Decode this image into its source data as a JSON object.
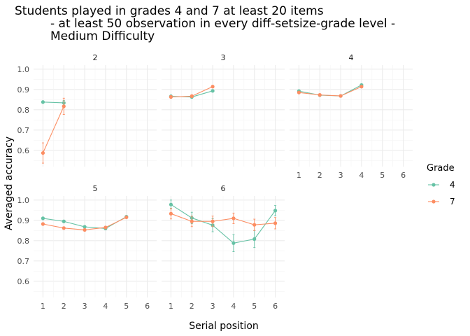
{
  "chart_data": {
    "type": "line",
    "title_lines": [
      "Students played in grades 4 and 7 at least 20 items",
      "- at least 50 observation in every diff-setsize-grade level -",
      "Medium Difficulty"
    ],
    "xlabel": "Serial position",
    "ylabel": "Averaged accuracy",
    "x_ticks": [
      1,
      2,
      3,
      4,
      5,
      6
    ],
    "y_ticks": [
      0.6,
      0.7,
      0.8,
      0.9,
      1.0
    ],
    "y_tick_labels": [
      "0.6",
      "0.7",
      "0.8",
      "0.9",
      "1.0"
    ],
    "ylim": [
      0.52,
      1.02
    ],
    "xlim": [
      0.55,
      6.45
    ],
    "grid": true,
    "legend": {
      "title": "Grade",
      "position": "right",
      "entries": [
        {
          "label": "4",
          "color": "#66c2a5"
        },
        {
          "label": "7",
          "color": "#fc8d62"
        }
      ]
    },
    "panels": [
      {
        "label": "2",
        "series": [
          {
            "name": "4",
            "color": "#66c2a5",
            "x": [
              1,
              2
            ],
            "y": [
              0.838,
              0.834
            ],
            "err": [
              0.006,
              0.012
            ]
          },
          {
            "name": "7",
            "color": "#fc8d62",
            "x": [
              1,
              2
            ],
            "y": [
              0.587,
              0.817
            ],
            "err": [
              0.05,
              0.04
            ]
          }
        ]
      },
      {
        "label": "3",
        "series": [
          {
            "name": "4",
            "color": "#66c2a5",
            "x": [
              1,
              2,
              3
            ],
            "y": [
              0.866,
              0.863,
              0.893
            ],
            "err": [
              0.007,
              0.007,
              0.006
            ]
          },
          {
            "name": "7",
            "color": "#fc8d62",
            "x": [
              1,
              2,
              3
            ],
            "y": [
              0.863,
              0.867,
              0.914
            ],
            "err": [
              0.007,
              0.007,
              0.006
            ]
          }
        ]
      },
      {
        "label": "4",
        "series": [
          {
            "name": "4",
            "color": "#66c2a5",
            "x": [
              1,
              2,
              3,
              4
            ],
            "y": [
              0.892,
              0.872,
              0.868,
              0.922
            ],
            "err": [
              0.006,
              0.006,
              0.006,
              0.005
            ]
          },
          {
            "name": "7",
            "color": "#fc8d62",
            "x": [
              1,
              2,
              3,
              4
            ],
            "y": [
              0.885,
              0.873,
              0.868,
              0.914
            ],
            "err": [
              0.006,
              0.006,
              0.006,
              0.005
            ]
          }
        ]
      },
      {
        "label": "5",
        "series": [
          {
            "name": "4",
            "color": "#66c2a5",
            "x": [
              1,
              2,
              3,
              4,
              5
            ],
            "y": [
              0.91,
              0.895,
              0.868,
              0.86,
              0.918
            ],
            "err": [
              0.006,
              0.006,
              0.006,
              0.006,
              0.005
            ]
          },
          {
            "name": "7",
            "color": "#fc8d62",
            "x": [
              1,
              2,
              3,
              4,
              5
            ],
            "y": [
              0.882,
              0.862,
              0.853,
              0.865,
              0.915
            ],
            "err": [
              0.006,
              0.006,
              0.006,
              0.006,
              0.005
            ]
          }
        ]
      },
      {
        "label": "6",
        "series": [
          {
            "name": "4",
            "color": "#66c2a5",
            "x": [
              1,
              2,
              3,
              4,
              5,
              6
            ],
            "y": [
              0.978,
              0.912,
              0.876,
              0.788,
              0.808,
              0.948
            ],
            "err": [
              0.022,
              0.028,
              0.032,
              0.042,
              0.042,
              0.025
            ]
          },
          {
            "name": "7",
            "color": "#fc8d62",
            "x": [
              1,
              2,
              3,
              4,
              5,
              6
            ],
            "y": [
              0.933,
              0.895,
              0.895,
              0.91,
              0.878,
              0.886
            ],
            "err": [
              0.026,
              0.026,
              0.026,
              0.026,
              0.028,
              0.028
            ]
          }
        ]
      }
    ]
  }
}
